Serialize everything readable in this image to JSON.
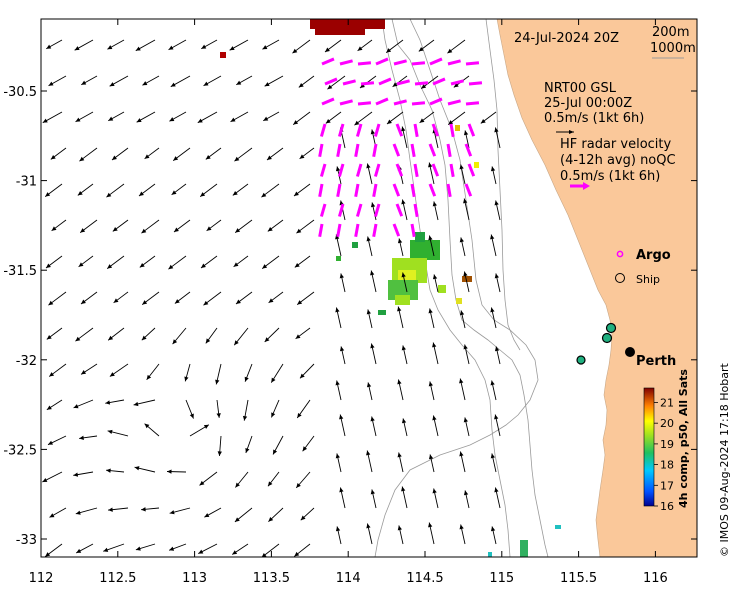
{
  "map": {
    "date_label": "24-Jul-2024 20Z",
    "depth_labels": [
      "200m",
      "1000m"
    ],
    "gsl": {
      "title": "NRT00 GSL",
      "time": "25-Jul 00:00Z",
      "scale": "0.5m/s (1kt 6h)"
    },
    "hf_radar": {
      "line1": "HF radar velocity",
      "line2": "(4-12h avg) noQC",
      "scale": "0.5m/s (1kt 6h)"
    },
    "legend": {
      "argo": "Argo",
      "ship": "Ship"
    },
    "city": "Perth",
    "x_ticks": [
      "112",
      "112.5",
      "113",
      "113.5",
      "114",
      "114.5",
      "115",
      "115.5",
      "116"
    ],
    "y_ticks": [
      "-30.5",
      "-31",
      "-31.5",
      "-32",
      "-32.5",
      "-33"
    ],
    "colorbar": {
      "label": "4h comp, p50, All Sats",
      "ticks": [
        "21",
        "20",
        "19",
        "18",
        "17",
        "16"
      ],
      "range": [
        16,
        21.7
      ]
    },
    "credit": "© IMOS 09-Aug-2024 17:18 Hobart",
    "colors": {
      "land": "#fac89a",
      "gsl_arrow": "#000000",
      "hf_arrow": "#ff00ff",
      "argo": "#ff00ff"
    }
  }
}
